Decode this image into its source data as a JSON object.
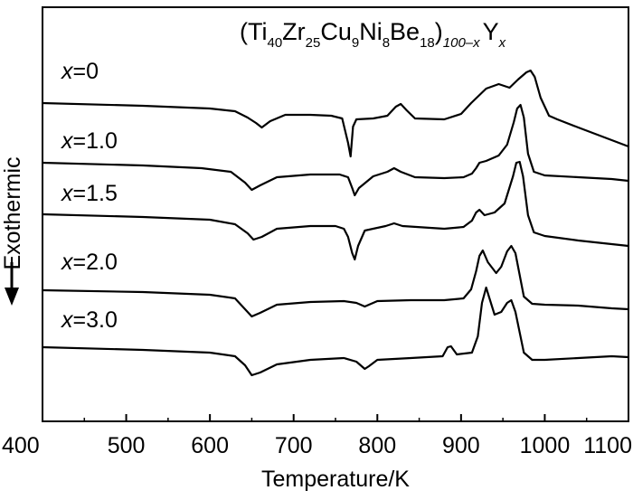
{
  "chart_data": {
    "type": "line",
    "title_parts": {
      "open": "(Ti",
      "ti_sub": "40",
      "zr": "Zr",
      "zr_sub": "25",
      "cu": "Cu",
      "cu_sub": "9",
      "ni": "Ni",
      "ni_sub": "8",
      "be": "Be",
      "be_sub": "18",
      "close": ")",
      "outer_sub": "100–x",
      "y": "Y",
      "y_sub": "x"
    },
    "xlabel": "Temperature/K",
    "ylabel": "Exothermic",
    "xlim": [
      400,
      1100
    ],
    "xticks": [
      "400",
      "500",
      "600",
      "700",
      "800",
      "900",
      "1000",
      "1100"
    ],
    "yticks_shown": false,
    "series": [
      {
        "name": "x=0",
        "var": "x",
        "eq": "=0",
        "offset": 0,
        "points": [
          [
            400,
            114
          ],
          [
            520,
            117
          ],
          [
            600,
            120
          ],
          [
            630,
            123
          ],
          [
            645,
            130
          ],
          [
            655,
            136
          ],
          [
            662,
            141
          ],
          [
            672,
            134
          ],
          [
            690,
            127
          ],
          [
            720,
            127
          ],
          [
            745,
            128
          ],
          [
            758,
            131
          ],
          [
            765,
            158
          ],
          [
            768,
            173
          ],
          [
            771,
            140
          ],
          [
            775,
            132
          ],
          [
            795,
            131
          ],
          [
            812,
            128
          ],
          [
            822,
            118
          ],
          [
            828,
            115
          ],
          [
            835,
            122
          ],
          [
            845,
            131
          ],
          [
            880,
            132
          ],
          [
            900,
            126
          ],
          [
            912,
            114
          ],
          [
            930,
            98
          ],
          [
            945,
            93
          ],
          [
            958,
            97
          ],
          [
            968,
            88
          ],
          [
            978,
            80
          ],
          [
            983,
            78
          ],
          [
            988,
            85
          ],
          [
            995,
            108
          ],
          [
            1005,
            128
          ],
          [
            1015,
            132
          ],
          [
            1040,
            141
          ],
          [
            1060,
            148
          ],
          [
            1080,
            155
          ],
          [
            1100,
            162
          ]
        ]
      },
      {
        "name": "x=1.0",
        "var": "x",
        "eq": "=1.0",
        "offset": 0,
        "points": [
          [
            400,
            180
          ],
          [
            520,
            183
          ],
          [
            590,
            186
          ],
          [
            625,
            190
          ],
          [
            642,
            202
          ],
          [
            650,
            210
          ],
          [
            660,
            205
          ],
          [
            680,
            196
          ],
          [
            720,
            193
          ],
          [
            755,
            193
          ],
          [
            765,
            196
          ],
          [
            770,
            208
          ],
          [
            773,
            216
          ],
          [
            778,
            208
          ],
          [
            795,
            195
          ],
          [
            812,
            190
          ],
          [
            820,
            186
          ],
          [
            828,
            190
          ],
          [
            845,
            196
          ],
          [
            880,
            197
          ],
          [
            903,
            196
          ],
          [
            913,
            192
          ],
          [
            918,
            186
          ],
          [
            922,
            180
          ],
          [
            930,
            178
          ],
          [
            945,
            172
          ],
          [
            955,
            160
          ],
          [
            963,
            135
          ],
          [
            967,
            120
          ],
          [
            971,
            116
          ],
          [
            975,
            130
          ],
          [
            980,
            170
          ],
          [
            987,
            190
          ],
          [
            1000,
            194
          ],
          [
            1040,
            196
          ],
          [
            1080,
            198
          ],
          [
            1100,
            200
          ]
        ]
      },
      {
        "name": "x=1.5",
        "var": "x",
        "eq": "=1.5",
        "offset": 0,
        "points": [
          [
            400,
            237
          ],
          [
            520,
            240
          ],
          [
            600,
            243
          ],
          [
            630,
            248
          ],
          [
            645,
            258
          ],
          [
            652,
            265
          ],
          [
            662,
            262
          ],
          [
            680,
            253
          ],
          [
            720,
            250
          ],
          [
            750,
            250
          ],
          [
            760,
            253
          ],
          [
            765,
            262
          ],
          [
            770,
            280
          ],
          [
            773,
            287
          ],
          [
            777,
            272
          ],
          [
            785,
            255
          ],
          [
            810,
            250
          ],
          [
            820,
            247
          ],
          [
            830,
            250
          ],
          [
            880,
            253
          ],
          [
            903,
            251
          ],
          [
            913,
            244
          ],
          [
            918,
            235
          ],
          [
            922,
            232
          ],
          [
            928,
            238
          ],
          [
            940,
            235
          ],
          [
            952,
            225
          ],
          [
            962,
            195
          ],
          [
            966,
            180
          ],
          [
            970,
            179
          ],
          [
            974,
            195
          ],
          [
            980,
            238
          ],
          [
            987,
            257
          ],
          [
            1000,
            261
          ],
          [
            1040,
            266
          ],
          [
            1080,
            270
          ],
          [
            1100,
            272
          ]
        ]
      },
      {
        "name": "x=2.0",
        "var": "x",
        "eq": "=2.0",
        "offset": 0,
        "points": [
          [
            400,
            321
          ],
          [
            520,
            323
          ],
          [
            600,
            326
          ],
          [
            630,
            330
          ],
          [
            642,
            342
          ],
          [
            650,
            350
          ],
          [
            660,
            346
          ],
          [
            680,
            337
          ],
          [
            720,
            334
          ],
          [
            760,
            333
          ],
          [
            775,
            335
          ],
          [
            785,
            339
          ],
          [
            790,
            337
          ],
          [
            800,
            333
          ],
          [
            840,
            332
          ],
          [
            880,
            332
          ],
          [
            903,
            330
          ],
          [
            912,
            320
          ],
          [
            918,
            300
          ],
          [
            922,
            283
          ],
          [
            926,
            277
          ],
          [
            932,
            290
          ],
          [
            942,
            302
          ],
          [
            948,
            295
          ],
          [
            955,
            278
          ],
          [
            960,
            272
          ],
          [
            965,
            280
          ],
          [
            975,
            328
          ],
          [
            985,
            336
          ],
          [
            1000,
            337
          ],
          [
            1040,
            338
          ],
          [
            1080,
            341
          ],
          [
            1100,
            342
          ]
        ]
      },
      {
        "name": "x=3.0",
        "var": "x",
        "eq": "=3.0",
        "offset": 0,
        "points": [
          [
            400,
            384
          ],
          [
            520,
            387
          ],
          [
            600,
            390
          ],
          [
            630,
            394
          ],
          [
            642,
            404
          ],
          [
            650,
            415
          ],
          [
            660,
            412
          ],
          [
            680,
            403
          ],
          [
            720,
            398
          ],
          [
            760,
            396
          ],
          [
            775,
            400
          ],
          [
            785,
            408
          ],
          [
            790,
            405
          ],
          [
            800,
            398
          ],
          [
            840,
            396
          ],
          [
            878,
            394
          ],
          [
            884,
            384
          ],
          [
            888,
            383
          ],
          [
            895,
            392
          ],
          [
            913,
            390
          ],
          [
            920,
            372
          ],
          [
            925,
            335
          ],
          [
            930,
            318
          ],
          [
            934,
            330
          ],
          [
            940,
            348
          ],
          [
            948,
            345
          ],
          [
            955,
            335
          ],
          [
            960,
            332
          ],
          [
            965,
            345
          ],
          [
            975,
            390
          ],
          [
            985,
            398
          ],
          [
            1000,
            398
          ],
          [
            1040,
            396
          ],
          [
            1080,
            394
          ],
          [
            1100,
            395
          ]
        ]
      }
    ],
    "grid": false,
    "legend": "inline-labels"
  }
}
